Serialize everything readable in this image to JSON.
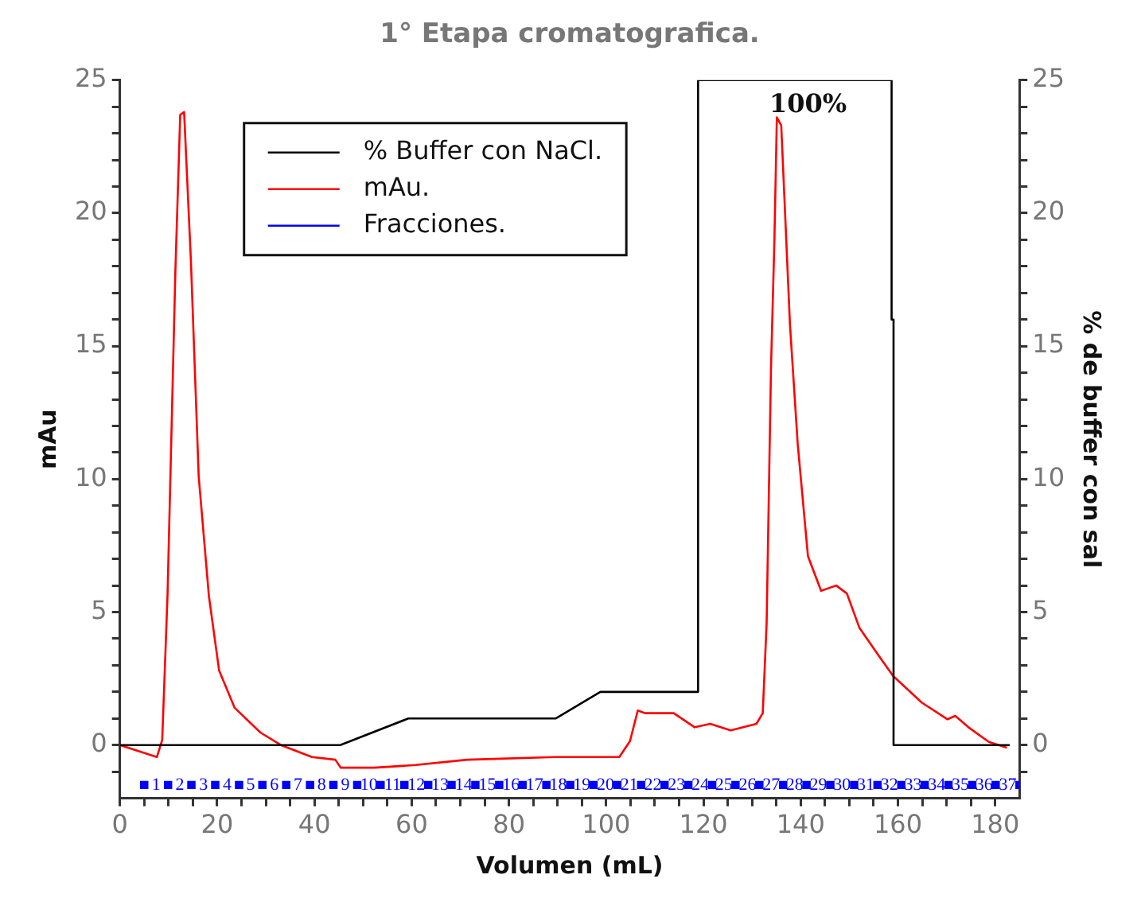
{
  "chart_data": {
    "type": "line",
    "title": "1° Etapa cromatografica.",
    "xlabel": "Volumen (mL)",
    "ylabel": "mAu",
    "y2label": "% de buffer con sal",
    "xlim": [
      0,
      185
    ],
    "xticks": [
      0,
      {
        "value": 5,
        "label": null
      },
      20,
      {
        "value": 10,
        "label": null
      },
      {
        "value": 15,
        "label": null
      },
      {
        "value": 25,
        "label": null
      },
      {
        "value": 30,
        "label": null
      },
      {
        "value": 35,
        "label": null
      },
      40,
      {
        "value": 45,
        "label": null
      },
      {
        "value": 50,
        "label": null
      },
      {
        "value": 55,
        "label": null
      },
      60,
      {
        "value": 65,
        "label": null
      },
      {
        "value": 70,
        "label": null
      },
      {
        "value": 75,
        "label": null
      },
      80,
      {
        "value": 85,
        "label": null
      },
      {
        "value": 90,
        "label": null
      },
      {
        "value": 95,
        "label": null
      },
      100,
      {
        "value": 105,
        "label": null
      },
      {
        "value": 110,
        "label": null
      },
      {
        "value": 115,
        "label": null
      },
      120,
      {
        "value": 125,
        "label": null
      },
      {
        "value": 130,
        "label": null
      },
      {
        "value": 135,
        "label": null
      },
      140,
      {
        "value": 145,
        "label": null
      },
      {
        "value": 150,
        "label": null
      },
      {
        "value": 155,
        "label": null
      },
      160,
      {
        "value": 165,
        "label": null
      },
      {
        "value": 170,
        "label": null
      },
      {
        "value": 175,
        "label": null
      },
      180
    ],
    "ylim": [
      -2,
      25
    ],
    "yticks": [
      {
        "value": -1,
        "label": null
      },
      0,
      {
        "value": 1,
        "label": null
      },
      {
        "value": 2,
        "label": null
      },
      {
        "value": 3,
        "label": null
      },
      {
        "value": 4,
        "label": null
      },
      5,
      {
        "value": 6,
        "label": null
      },
      {
        "value": 7,
        "label": null
      },
      {
        "value": 8,
        "label": null
      },
      {
        "value": 9,
        "label": null
      },
      10,
      {
        "value": 11,
        "label": null
      },
      {
        "value": 12,
        "label": null
      },
      {
        "value": 13,
        "label": null
      },
      {
        "value": 14,
        "label": null
      },
      15,
      {
        "value": 16,
        "label": null
      },
      {
        "value": 17,
        "label": null
      },
      {
        "value": 18,
        "label": null
      },
      {
        "value": 19,
        "label": null
      },
      20,
      {
        "value": 21,
        "label": null
      },
      {
        "value": 22,
        "label": null
      },
      {
        "value": 23,
        "label": null
      },
      {
        "value": 24,
        "label": null
      },
      25
    ],
    "y2lim": [
      -2,
      25
    ],
    "y2ticks": [
      {
        "value": -1,
        "label": null
      },
      0,
      {
        "value": 1,
        "label": null
      },
      {
        "value": 2,
        "label": null
      },
      {
        "value": 3,
        "label": null
      },
      {
        "value": 4,
        "label": null
      },
      5,
      {
        "value": 6,
        "label": null
      },
      {
        "value": 7,
        "label": null
      },
      {
        "value": 8,
        "label": null
      },
      {
        "value": 9,
        "label": null
      },
      10,
      {
        "value": 11,
        "label": null
      },
      {
        "value": 12,
        "label": null
      },
      {
        "value": 13,
        "label": null
      },
      {
        "value": 14,
        "label": null
      },
      15,
      {
        "value": 16,
        "label": null
      },
      {
        "value": 17,
        "label": null
      },
      {
        "value": 18,
        "label": null
      },
      {
        "value": 19,
        "label": null
      },
      20,
      {
        "value": 21,
        "label": null
      },
      {
        "value": 22,
        "label": null
      },
      {
        "value": 23,
        "label": null
      },
      {
        "value": 24,
        "label": null
      },
      25
    ],
    "grid": false,
    "legend": "top left",
    "marker": "none",
    "series": [
      {
        "name": "% Buffer con NaCl.",
        "color": "#000000",
        "axis": "y2",
        "x": [
          0,
          45.3,
          59.3,
          89.6,
          98.8,
          118.9,
          118.9,
          158.7,
          158.7,
          159.1,
          159.1,
          183
        ],
        "values": [
          0,
          0,
          1,
          1,
          2,
          2,
          25,
          25,
          16,
          16,
          0,
          0
        ]
      },
      {
        "name": "mAu.",
        "color": "#ff0000",
        "x": [
          0,
          7.6,
          8.7,
          9.8,
          11.4,
          12.4,
          13.2,
          14.6,
          16.2,
          18.3,
          20.4,
          23.6,
          28.9,
          33.1,
          39.5,
          44.3,
          45.4,
          52.3,
          60.8,
          71.4,
          89.5,
          96.9,
          102.7,
          104.9,
          106.5,
          108,
          113.9,
          118.2,
          121.4,
          125.6,
          130.9,
          132.2,
          133,
          133.9,
          134.6,
          135.1,
          136,
          137.8,
          139.4,
          141.5,
          144.2,
          147.3,
          149.5,
          152.1,
          155.9,
          159,
          164.9,
          170.2,
          171.8,
          174.5,
          178.7,
          182.4
        ],
        "values": [
          0,
          -0.45,
          0.2,
          5.7,
          17.8,
          23.7,
          23.8,
          18.2,
          10.1,
          5.6,
          2.8,
          1.4,
          0.47,
          0,
          -0.45,
          -0.55,
          -0.85,
          -0.85,
          -0.75,
          -0.55,
          -0.45,
          -0.45,
          -0.45,
          0.15,
          1.3,
          1.2,
          1.2,
          0.67,
          0.8,
          0.55,
          0.8,
          1.2,
          4.6,
          14.2,
          19,
          23.6,
          23.3,
          15.8,
          11.3,
          7.1,
          5.8,
          6,
          5.7,
          4.4,
          3.4,
          2.6,
          1.6,
          0.97,
          1.1,
          0.67,
          0.12,
          -0.1
        ]
      },
      {
        "name": "Fracciones.",
        "color": "#0000ff",
        "type": "scatter",
        "marker": "square",
        "x": [
          5,
          9.9,
          14.7,
          19.6,
          24.5,
          29.3,
          34.2,
          39.1,
          43.9,
          48.8,
          53.6,
          58.5,
          63.4,
          68.2,
          73.1,
          78,
          82.8,
          87.7,
          92.6,
          97.4,
          102.3,
          107.2,
          112,
          116.9,
          121.8,
          126.6,
          131.5,
          136.4,
          141.2,
          146.1,
          151,
          155.8,
          160.7,
          165.5,
          170.4,
          175.3,
          180.1,
          185
        ],
        "values": [
          -1.5,
          -1.5,
          -1.5,
          -1.5,
          -1.5,
          -1.5,
          -1.5,
          -1.5,
          -1.5,
          -1.5,
          -1.5,
          -1.5,
          -1.5,
          -1.5,
          -1.5,
          -1.5,
          -1.5,
          -1.5,
          -1.5,
          -1.5,
          -1.5,
          -1.5,
          -1.5,
          -1.5,
          -1.5,
          -1.5,
          -1.5,
          -1.5,
          -1.5,
          -1.5,
          -1.5,
          -1.5,
          -1.5,
          -1.5,
          -1.5,
          -1.5,
          -1.5,
          -1.5
        ]
      }
    ],
    "annotations": [
      "100%"
    ],
    "x2lim": [
      -0.53,
      37.5
    ],
    "x2ticks": [
      1,
      2,
      3,
      4,
      5,
      6,
      7,
      8,
      9,
      10,
      11,
      12,
      13,
      14,
      15,
      16,
      17,
      18,
      19,
      20,
      21,
      22,
      23,
      24,
      25,
      26,
      27,
      28,
      29,
      30,
      31,
      32,
      33,
      34,
      35,
      36,
      37
    ]
  }
}
